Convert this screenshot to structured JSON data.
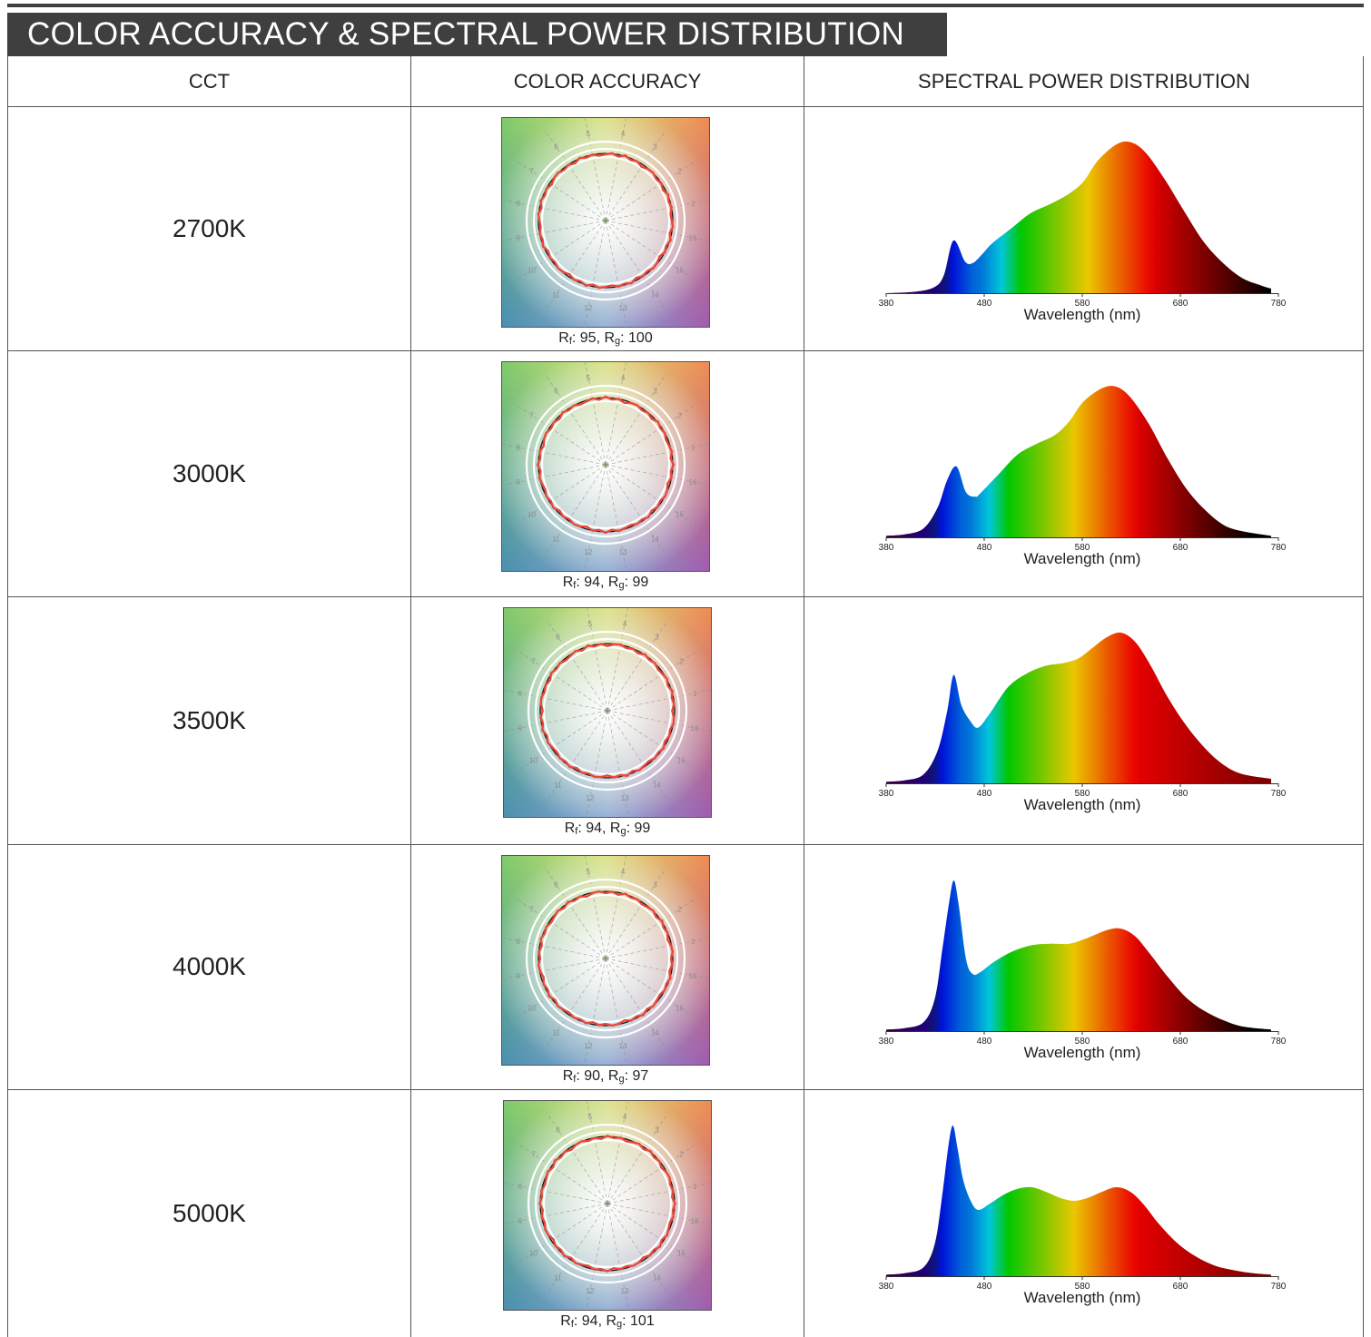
{
  "title": "COLOR ACCURACY & SPECTRAL POWER DISTRIBUTION",
  "headers": {
    "cct": "CCT",
    "color_accuracy": "COLOR ACCURACY",
    "spd": "SPECTRAL POWER DISTRIBUTION"
  },
  "rows": [
    {
      "cct": "2700K",
      "rf": "95",
      "rg": "100"
    },
    {
      "cct": "3000K",
      "rf": "94",
      "rg": "99"
    },
    {
      "cct": "3500K",
      "rf": "94",
      "rg": "99"
    },
    {
      "cct": "4000K",
      "rf": "90",
      "rg": "97"
    },
    {
      "cct": "5000K",
      "rf": "94",
      "rg": "101"
    }
  ],
  "labels": {
    "rf_prefix": "R",
    "rf_sub": "f",
    "rg_prefix": "R",
    "rg_sub": "g",
    "separator": ", "
  },
  "vector_hue_numbers": [
    "1",
    "2",
    "3",
    "4",
    "5",
    "6",
    "7",
    "8",
    "9",
    "10",
    "11",
    "12",
    "13",
    "14",
    "15",
    "16"
  ],
  "chart_data": [
    {
      "type": "area",
      "cct": "2700K",
      "xlabel": "Wavelength (nm)",
      "xticks": [
        380,
        480,
        580,
        680,
        780
      ],
      "xlim": [
        370,
        770
      ],
      "x": [
        370,
        400,
        420,
        430,
        440,
        452,
        460,
        470,
        480,
        500,
        520,
        540,
        560,
        575,
        590,
        610,
        625,
        640,
        660,
        680,
        700,
        720,
        740,
        760,
        770
      ],
      "values": [
        0,
        0.01,
        0.04,
        0.12,
        0.35,
        0.21,
        0.2,
        0.26,
        0.33,
        0.43,
        0.53,
        0.59,
        0.66,
        0.74,
        0.88,
        0.99,
        1.0,
        0.93,
        0.75,
        0.54,
        0.34,
        0.2,
        0.1,
        0.05,
        0.03
      ]
    },
    {
      "type": "area",
      "cct": "3000K",
      "xlabel": "Wavelength (nm)",
      "xticks": [
        380,
        480,
        580,
        680,
        780
      ],
      "xlim": [
        380,
        790
      ],
      "x": [
        380,
        400,
        420,
        435,
        445,
        455,
        465,
        475,
        480,
        500,
        520,
        540,
        560,
        575,
        590,
        610,
        625,
        640,
        660,
        680,
        700,
        720,
        740,
        760,
        790
      ],
      "values": [
        0.01,
        0.02,
        0.06,
        0.2,
        0.38,
        0.47,
        0.3,
        0.27,
        0.29,
        0.42,
        0.55,
        0.62,
        0.68,
        0.77,
        0.9,
        0.99,
        1.0,
        0.93,
        0.75,
        0.52,
        0.32,
        0.18,
        0.08,
        0.04,
        0.01
      ]
    },
    {
      "type": "area",
      "cct": "3500K",
      "xlabel": "Wavelength (nm)",
      "xticks": [
        380,
        480,
        580,
        680,
        780
      ],
      "xlim": [
        380,
        790
      ],
      "x": [
        380,
        400,
        420,
        435,
        445,
        452,
        460,
        470,
        478,
        490,
        510,
        530,
        550,
        570,
        585,
        600,
        615,
        630,
        645,
        660,
        680,
        700,
        720,
        740,
        760,
        790
      ],
      "values": [
        0.01,
        0.02,
        0.06,
        0.22,
        0.48,
        0.72,
        0.52,
        0.41,
        0.37,
        0.46,
        0.64,
        0.73,
        0.78,
        0.8,
        0.83,
        0.9,
        0.97,
        1.0,
        0.94,
        0.8,
        0.57,
        0.38,
        0.23,
        0.12,
        0.06,
        0.03
      ]
    },
    {
      "type": "area",
      "cct": "4000K",
      "xlabel": "Wavelength (nm)",
      "xticks": [
        380,
        480,
        580,
        680,
        780
      ],
      "xlim": [
        380,
        790
      ],
      "x": [
        380,
        400,
        420,
        432,
        440,
        447,
        452,
        457,
        465,
        472,
        480,
        495,
        515,
        535,
        555,
        575,
        595,
        615,
        630,
        645,
        660,
        680,
        700,
        720,
        740,
        760,
        790
      ],
      "values": [
        0.01,
        0.02,
        0.06,
        0.22,
        0.55,
        0.85,
        1.0,
        0.85,
        0.48,
        0.38,
        0.39,
        0.46,
        0.53,
        0.57,
        0.58,
        0.58,
        0.62,
        0.67,
        0.68,
        0.63,
        0.52,
        0.36,
        0.22,
        0.13,
        0.07,
        0.03,
        0.01
      ]
    },
    {
      "type": "area",
      "cct": "5000K",
      "xlabel": "Wavelength (nm)",
      "xticks": [
        380,
        480,
        580,
        680,
        780
      ],
      "xlim": [
        380,
        790
      ],
      "x": [
        380,
        400,
        420,
        432,
        440,
        446,
        451,
        456,
        462,
        470,
        478,
        490,
        505,
        520,
        535,
        550,
        565,
        580,
        595,
        610,
        625,
        640,
        655,
        670,
        690,
        710,
        730,
        750,
        770,
        790
      ],
      "values": [
        0.01,
        0.02,
        0.06,
        0.22,
        0.55,
        0.85,
        1.0,
        0.85,
        0.64,
        0.5,
        0.44,
        0.48,
        0.54,
        0.58,
        0.59,
        0.56,
        0.52,
        0.5,
        0.52,
        0.56,
        0.59,
        0.56,
        0.47,
        0.35,
        0.22,
        0.13,
        0.07,
        0.04,
        0.02,
        0.01
      ]
    }
  ]
}
